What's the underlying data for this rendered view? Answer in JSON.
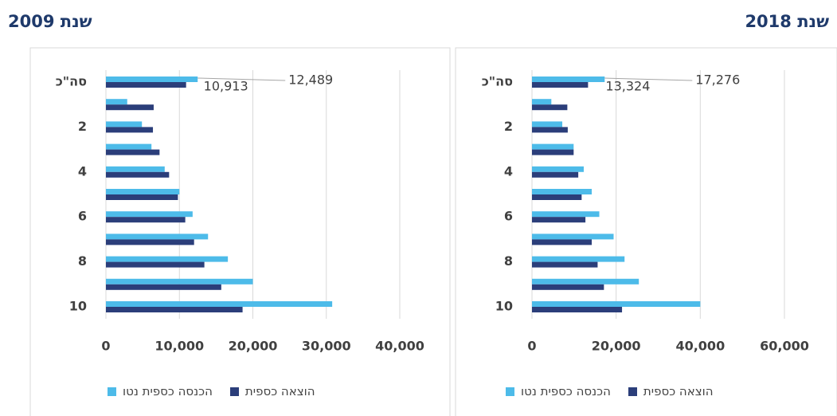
{
  "chart_data": [
    {
      "type": "bar",
      "orientation": "horizontal",
      "title": "שנת 2009",
      "categories": [
        "סה\"כ",
        null,
        "2",
        null,
        "4",
        null,
        "6",
        null,
        "8",
        null,
        "10"
      ],
      "series": [
        {
          "name": "הכנסה כספית נטו",
          "color": "#4dbbe9",
          "values": [
            12489,
            2900,
            4900,
            6200,
            8000,
            10000,
            11800,
            13900,
            16600,
            20000,
            30800
          ],
          "value_labels": [
            "12,489",
            null,
            null,
            null,
            null,
            null,
            null,
            null,
            null,
            null,
            null
          ]
        },
        {
          "name": "הוצאה כספית",
          "color": "#2b3e7a",
          "values": [
            10913,
            6500,
            6400,
            7300,
            8600,
            9800,
            10800,
            12000,
            13400,
            15700,
            18600
          ],
          "value_labels": [
            "10,913",
            null,
            null,
            null,
            null,
            null,
            null,
            null,
            null,
            null,
            null
          ]
        }
      ],
      "xlim": [
        0,
        40000
      ],
      "xticks": [
        0,
        {
          "value": 10000,
          "label": "10,000"
        },
        {
          "value": 20000,
          "label": "20,000"
        },
        {
          "value": 30000,
          "label": "30,000"
        },
        {
          "value": 40000,
          "label": "40,000"
        }
      ],
      "grid": true
    },
    {
      "type": "bar",
      "orientation": "horizontal",
      "title": "שנת 2018",
      "categories": [
        "סה\"כ",
        null,
        "2",
        null,
        "4",
        null,
        "6",
        null,
        "8",
        null,
        "10"
      ],
      "series": [
        {
          "name": "הכנסה כספית נטו",
          "color": "#4dbbe9",
          "values": [
            17276,
            4600,
            7200,
            9900,
            12300,
            14200,
            16000,
            19400,
            22000,
            25400,
            40000
          ],
          "value_labels": [
            "17,276",
            null,
            null,
            null,
            null,
            null,
            null,
            null,
            null,
            null,
            null
          ]
        },
        {
          "name": "הוצאה כספית",
          "color": "#2b3e7a",
          "values": [
            13324,
            8400,
            8500,
            9900,
            11000,
            11800,
            12700,
            14200,
            15600,
            17100,
            21400
          ],
          "value_labels": [
            "13,324",
            null,
            null,
            null,
            null,
            null,
            null,
            null,
            null,
            null,
            null
          ]
        }
      ],
      "xlim": [
        0,
        60000
      ],
      "xticks": [
        0,
        {
          "value": 20000,
          "label": "20,000"
        },
        {
          "value": 40000,
          "label": "40,000"
        },
        {
          "value": 60000,
          "label": "60,000"
        }
      ],
      "grid": true
    }
  ]
}
